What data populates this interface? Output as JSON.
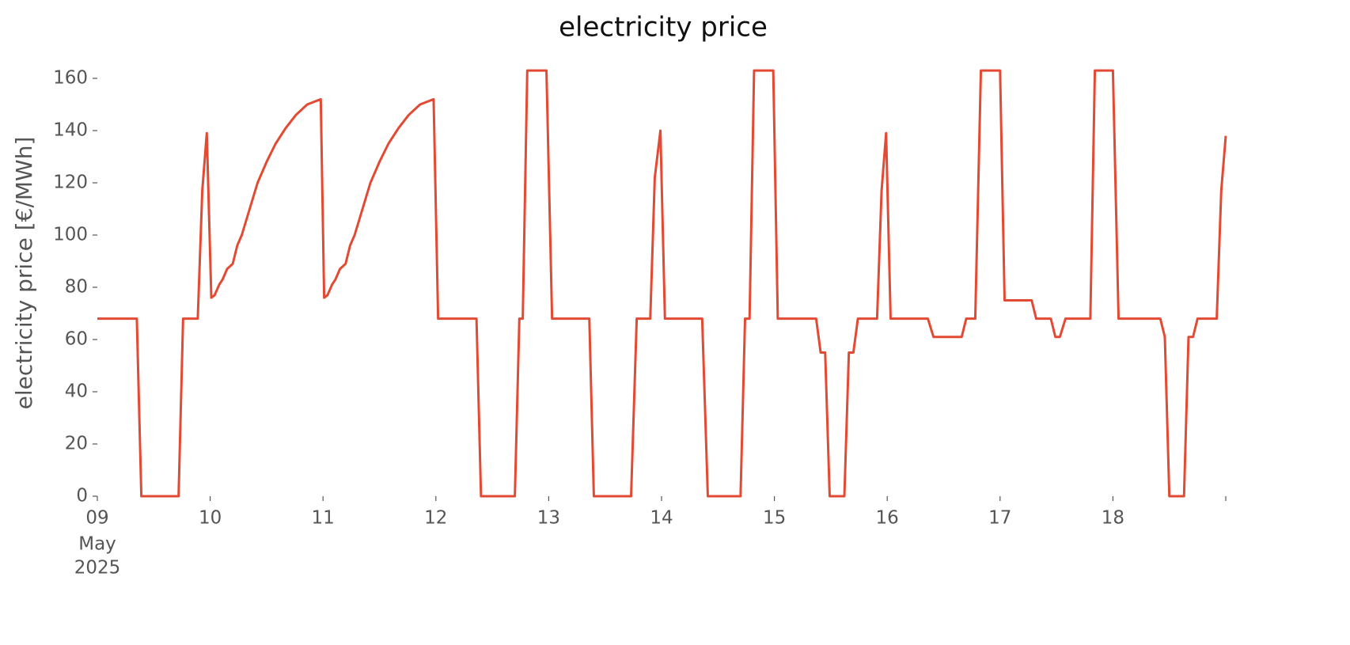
{
  "chart_data": {
    "type": "line",
    "title": "electricity price",
    "ylabel": "electricity price [€/MWh]",
    "x_date_label": [
      "May",
      "2025"
    ],
    "x": [
      9.0,
      9.35,
      9.39,
      9.72,
      9.76,
      9.89,
      9.93,
      9.97,
      10.01,
      10.04,
      10.08,
      10.11,
      10.15,
      10.2,
      10.24,
      10.28,
      10.35,
      10.42,
      10.5,
      10.58,
      10.67,
      10.76,
      10.86,
      10.98,
      11.01,
      11.04,
      11.08,
      11.11,
      11.15,
      11.2,
      11.24,
      11.28,
      11.35,
      11.42,
      11.5,
      11.58,
      11.67,
      11.76,
      11.86,
      11.98,
      12.02,
      12.36,
      12.4,
      12.7,
      12.74,
      12.77,
      12.81,
      12.98,
      13.03,
      13.36,
      13.4,
      13.73,
      13.78,
      13.9,
      13.94,
      13.99,
      14.03,
      14.36,
      14.41,
      14.7,
      14.74,
      14.78,
      14.82,
      14.99,
      15.03,
      15.37,
      15.41,
      15.45,
      15.49,
      15.62,
      15.66,
      15.7,
      15.74,
      15.91,
      15.95,
      15.99,
      16.03,
      16.36,
      16.41,
      16.66,
      16.7,
      16.78,
      16.83,
      17.0,
      17.04,
      17.28,
      17.32,
      17.45,
      17.49,
      17.53,
      17.58,
      17.8,
      17.84,
      18.0,
      18.05,
      18.42,
      18.46,
      18.5,
      18.63,
      18.67,
      18.71,
      18.75,
      18.92,
      18.96,
      19.0
    ],
    "values": [
      68,
      68,
      0,
      0,
      68,
      68,
      117,
      139,
      76,
      77,
      81,
      83,
      87,
      89,
      96,
      100,
      110,
      120,
      128,
      135,
      141,
      146,
      150,
      152,
      76,
      77,
      81,
      83,
      87,
      89,
      96,
      100,
      110,
      120,
      128,
      135,
      141,
      146,
      150,
      152,
      68,
      68,
      0,
      0,
      68,
      68,
      163,
      163,
      68,
      68,
      0,
      0,
      68,
      68,
      122,
      140,
      68,
      68,
      0,
      0,
      68,
      68,
      163,
      163,
      68,
      68,
      55,
      55,
      0,
      0,
      55,
      55,
      68,
      68,
      117,
      139,
      68,
      68,
      61,
      61,
      68,
      68,
      163,
      163,
      75,
      75,
      68,
      68,
      61,
      61,
      68,
      68,
      163,
      163,
      68,
      68,
      61,
      0,
      0,
      61,
      61,
      68,
      68,
      117,
      138
    ],
    "color": "#e24a33",
    "xlim": [
      9,
      19
    ],
    "xticks": [
      {
        "value": 9,
        "label": "09"
      },
      10,
      11,
      12,
      13,
      14,
      15,
      16,
      17,
      18,
      {
        "value": 19,
        "label": null
      }
    ],
    "ylim": [
      0,
      165
    ],
    "yticks": [
      0,
      20,
      40,
      60,
      80,
      100,
      120,
      140,
      160
    ],
    "grid": false
  }
}
